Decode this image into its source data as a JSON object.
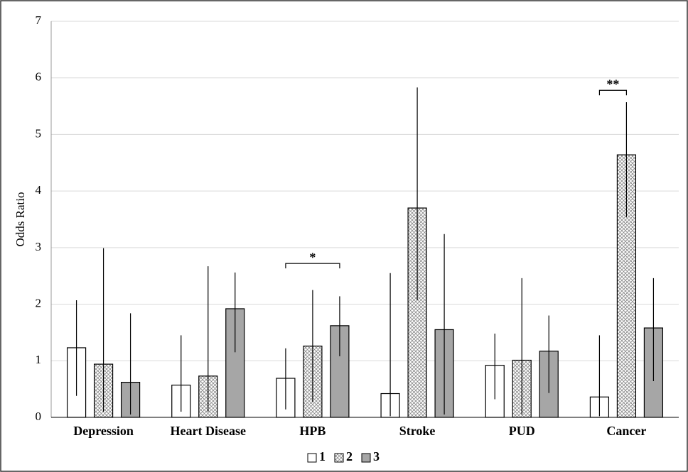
{
  "chart_data": {
    "type": "bar",
    "y_label": "Odds Ratio",
    "categories": [
      "Depression",
      "Heart Disease",
      "HPB",
      "Stroke",
      "PUD",
      "Cancer"
    ],
    "series": [
      {
        "name": "1",
        "color": "#ffffff",
        "values": [
          1.23,
          0.57,
          0.69,
          0.42,
          0.92,
          0.36
        ],
        "ci_low": [
          0.38,
          0.1,
          0.14,
          0.02,
          0.32,
          0.02
        ],
        "ci_high": [
          2.07,
          1.45,
          1.22,
          2.55,
          1.48,
          1.45
        ]
      },
      {
        "name": "2",
        "color": "#ffffff",
        "pattern": "crosshatch",
        "values": [
          0.94,
          0.73,
          1.26,
          3.7,
          1.01,
          4.64
        ],
        "ci_low": [
          0.1,
          0.1,
          0.27,
          2.07,
          0.05,
          3.54
        ],
        "ci_high": [
          2.99,
          2.67,
          2.25,
          5.83,
          2.46,
          5.57
        ]
      },
      {
        "name": "3",
        "color": "#a6a6a6",
        "values": [
          0.62,
          1.92,
          1.62,
          1.55,
          1.17,
          1.58
        ],
        "ci_low": [
          0.05,
          1.15,
          1.08,
          0.05,
          0.43,
          0.64
        ],
        "ci_high": [
          1.84,
          2.56,
          2.14,
          3.24,
          1.8,
          2.46
        ]
      }
    ],
    "annotations": [
      {
        "text": "*",
        "category": "HPB",
        "series": [
          "1",
          "3"
        ],
        "y": 2.72
      },
      {
        "text": "**",
        "category": "Cancer",
        "series": [
          "1",
          "2"
        ],
        "y": 5.78
      }
    ],
    "ylim": [
      0,
      7
    ],
    "yticks": [
      0,
      1,
      2,
      3,
      4,
      5,
      6,
      7
    ],
    "grid": true,
    "legend": "bottom"
  }
}
